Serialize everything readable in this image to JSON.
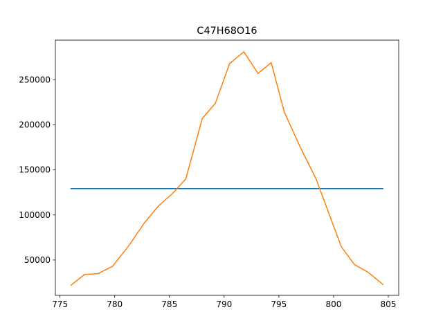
{
  "chart_data": {
    "type": "line",
    "title": "C47H68O16",
    "xlabel": "",
    "ylabel": "",
    "xlim": [
      774.58,
      805.95
    ],
    "ylim": [
      10800,
      294000
    ],
    "grid": false,
    "legend": "none",
    "x_ticks": [
      775,
      780,
      785,
      790,
      795,
      800,
      805
    ],
    "y_ticks": [
      50000,
      100000,
      150000,
      200000,
      250000
    ],
    "y_tick_labels": [
      "50000",
      "100000",
      "150000",
      "200000",
      "250000"
    ],
    "series": [
      {
        "color": "#1f77b4",
        "x": [
          776.0,
          804.5
        ],
        "y": [
          129200,
          129200
        ]
      },
      {
        "color": "#ff7f0e",
        "x": [
          776.0,
          777.25,
          778.5,
          779.8,
          781.3,
          782.7,
          784.0,
          785.3,
          786.5,
          788.0,
          789.2,
          790.5,
          791.8,
          793.1,
          794.3,
          795.5,
          797.0,
          798.4,
          799.5,
          800.7,
          801.9,
          803.2,
          804.5
        ],
        "y": [
          22000,
          34000,
          35000,
          43000,
          66000,
          91000,
          110000,
          124000,
          140000,
          207000,
          224000,
          268000,
          281000,
          257000,
          269000,
          214000,
          174000,
          140000,
          104000,
          65000,
          45000,
          36000,
          23000
        ]
      }
    ]
  }
}
